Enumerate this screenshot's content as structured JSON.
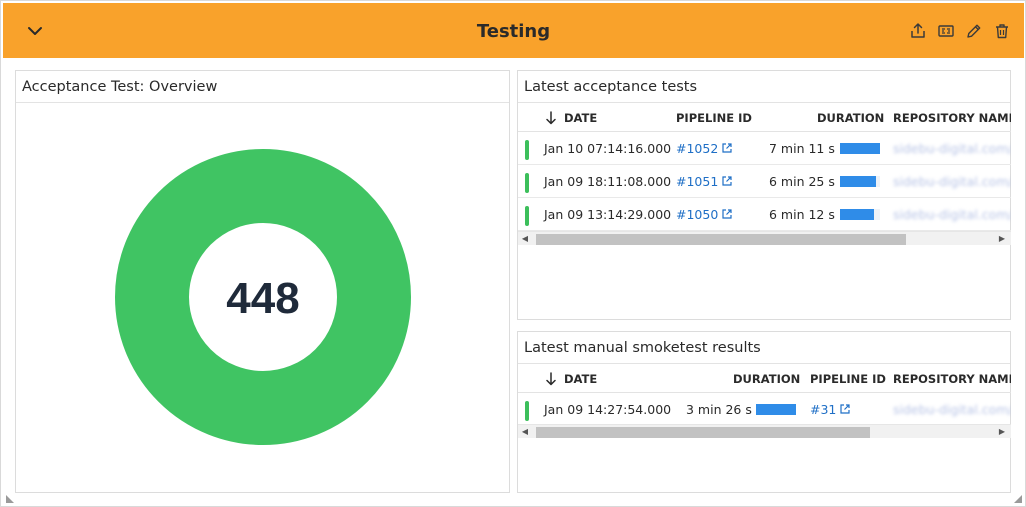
{
  "header": {
    "title": "Testing",
    "icons": [
      "chevron-down-icon",
      "share-icon",
      "json-icon",
      "edit-icon",
      "delete-icon"
    ],
    "background_color": "#f9a22b"
  },
  "overview": {
    "title": "Acceptance Test: Overview",
    "total": "448",
    "ring_color": "#40c463"
  },
  "acceptance": {
    "title": "Latest acceptance tests",
    "columns": [
      "DATE",
      "PIPELINE ID",
      "DURATION",
      "REPOSITORY NAME"
    ],
    "sort_column": "DATE",
    "rows": [
      {
        "date": "Jan 10 07:14:16.000",
        "pipeline": "#1052",
        "duration": "7 min 11 s",
        "duration_fraction": 1.0,
        "repo": "sidebu-digital.com/..."
      },
      {
        "date": "Jan 09 18:11:08.000",
        "pipeline": "#1051",
        "duration": "6 min 25 s",
        "duration_fraction": 0.89,
        "repo": "sidebu-digital.com/..."
      },
      {
        "date": "Jan 09 13:14:29.000",
        "pipeline": "#1050",
        "duration": "6 min 12 s",
        "duration_fraction": 0.86,
        "repo": "sidebu-digital.com/..."
      }
    ]
  },
  "smoke": {
    "title": "Latest manual smoketest results",
    "columns": [
      "DATE",
      "DURATION",
      "PIPELINE ID",
      "REPOSITORY NAME"
    ],
    "sort_column": "DATE",
    "rows": [
      {
        "date": "Jan 09 14:27:54.000",
        "duration": "3 min 26 s",
        "duration_fraction": 1.0,
        "pipeline": "#31",
        "repo": "sidebu-digital.com/..."
      }
    ]
  },
  "status_color": "#3cbf5b",
  "bar_color": "#2f8ce8",
  "link_color": "#1f6fc6"
}
